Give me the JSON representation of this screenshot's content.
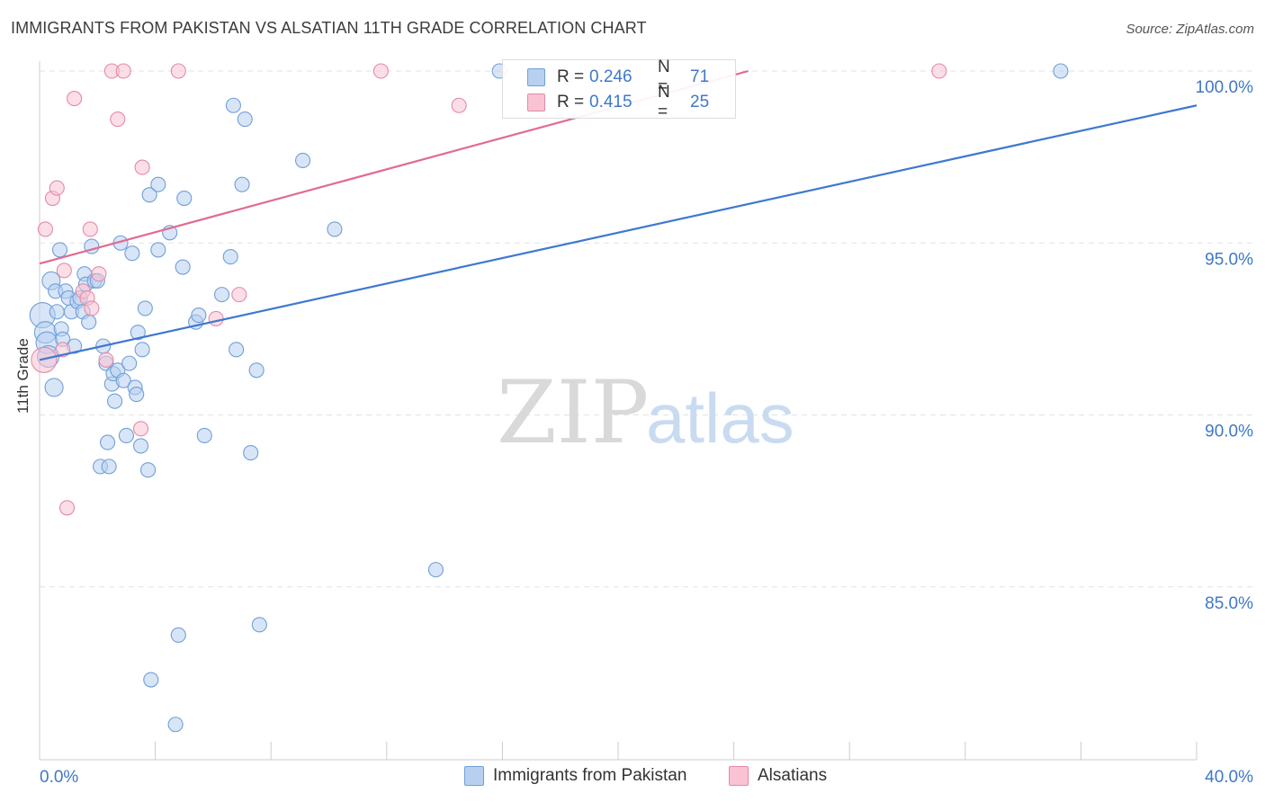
{
  "header": {
    "title": "IMMIGRANTS FROM PAKISTAN VS ALSATIAN 11TH GRADE CORRELATION CHART",
    "source": "Source: ZipAtlas.com"
  },
  "watermark": {
    "zip": "ZIP",
    "atlas": "atlas"
  },
  "legend": {
    "r_label": "R =",
    "n_label": "N =",
    "series": [
      {
        "name": "Immigrants from Pakistan",
        "r": "0.246",
        "n": "71",
        "fill": "#b8d0f0",
        "stroke": "#6f9fd8"
      },
      {
        "name": "Alsatians",
        "r": "0.415",
        "n": "25",
        "fill": "#f9c3d3",
        "stroke": "#e48aa8"
      }
    ]
  },
  "colors": {
    "blue_line": "#3f78d0",
    "pink_line": "#e26a90",
    "axis_text": "#3f78c8",
    "grid": "#e2e2e2"
  },
  "chart_data": {
    "type": "scatter",
    "title": "IMMIGRANTS FROM PAKISTAN VS ALSATIAN 11TH GRADE CORRELATION CHART",
    "xlabel": "",
    "ylabel": "11th Grade",
    "xlim": [
      0,
      40
    ],
    "ylim": [
      80.5,
      100.5
    ],
    "x_tick_labels": [
      "0.0%",
      "40.0%"
    ],
    "y_ticks": [
      85,
      90,
      95,
      100
    ],
    "y_tick_labels": [
      "85.0%",
      "90.0%",
      "95.0%",
      "100.0%"
    ],
    "series": [
      {
        "name": "Immigrants from Pakistan",
        "r": 0.246,
        "n": 71,
        "trend": {
          "x0": 0,
          "y0": 91.6,
          "x1": 40,
          "y1": 99.0
        },
        "points": [
          [
            0.1,
            92.9,
            14
          ],
          [
            0.2,
            92.4,
            12
          ],
          [
            0.25,
            92.1,
            12
          ],
          [
            0.3,
            91.7,
            12
          ],
          [
            0.4,
            93.9,
            10
          ],
          [
            0.5,
            90.8,
            10
          ],
          [
            0.55,
            93.6,
            8
          ],
          [
            0.6,
            93.0,
            8
          ],
          [
            0.7,
            94.8,
            8
          ],
          [
            0.75,
            92.5,
            8
          ],
          [
            0.8,
            92.2,
            8
          ],
          [
            0.9,
            93.6,
            8
          ],
          [
            1.0,
            93.4,
            8
          ],
          [
            1.1,
            93.0,
            8
          ],
          [
            1.2,
            92.0,
            8
          ],
          [
            1.3,
            93.3,
            8
          ],
          [
            1.4,
            93.4,
            8
          ],
          [
            1.5,
            93.0,
            8
          ],
          [
            1.55,
            94.1,
            8
          ],
          [
            1.6,
            93.8,
            8
          ],
          [
            1.7,
            92.7,
            8
          ],
          [
            1.8,
            94.9,
            8
          ],
          [
            1.9,
            93.9,
            8
          ],
          [
            2.0,
            93.9,
            8
          ],
          [
            2.1,
            88.5,
            8
          ],
          [
            2.2,
            92.0,
            8
          ],
          [
            2.3,
            91.5,
            8
          ],
          [
            2.35,
            89.2,
            8
          ],
          [
            2.4,
            88.5,
            8
          ],
          [
            2.5,
            90.9,
            8
          ],
          [
            2.55,
            91.2,
            8
          ],
          [
            2.6,
            90.4,
            8
          ],
          [
            2.7,
            91.3,
            8
          ],
          [
            2.8,
            95.0,
            8
          ],
          [
            2.9,
            91.0,
            8
          ],
          [
            3.0,
            89.4,
            8
          ],
          [
            3.1,
            91.5,
            8
          ],
          [
            3.2,
            94.7,
            8
          ],
          [
            3.3,
            90.8,
            8
          ],
          [
            3.35,
            90.6,
            8
          ],
          [
            3.4,
            92.4,
            8
          ],
          [
            3.5,
            89.1,
            8
          ],
          [
            3.55,
            91.9,
            8
          ],
          [
            3.65,
            93.1,
            8
          ],
          [
            3.75,
            88.4,
            8
          ],
          [
            3.8,
            96.4,
            8
          ],
          [
            3.85,
            82.3,
            8
          ],
          [
            4.1,
            96.7,
            8
          ],
          [
            4.1,
            94.8,
            8
          ],
          [
            4.5,
            95.3,
            8
          ],
          [
            4.7,
            81.0,
            8
          ],
          [
            4.8,
            83.6,
            8
          ],
          [
            4.95,
            94.3,
            8
          ],
          [
            5.0,
            96.3,
            8
          ],
          [
            5.4,
            92.7,
            8
          ],
          [
            5.5,
            92.9,
            8
          ],
          [
            5.7,
            89.4,
            8
          ],
          [
            6.3,
            93.5,
            8
          ],
          [
            6.6,
            94.6,
            8
          ],
          [
            6.7,
            99.0,
            8
          ],
          [
            6.8,
            91.9,
            8
          ],
          [
            7.0,
            96.7,
            8
          ],
          [
            7.1,
            98.6,
            8
          ],
          [
            7.3,
            88.9,
            8
          ],
          [
            7.5,
            91.3,
            8
          ],
          [
            7.6,
            83.9,
            8
          ],
          [
            9.1,
            97.4,
            8
          ],
          [
            10.2,
            95.4,
            8
          ],
          [
            13.7,
            85.5,
            8
          ],
          [
            15.9,
            100.0,
            8
          ],
          [
            35.3,
            100.0,
            8
          ]
        ]
      },
      {
        "name": "Alsatians",
        "r": 0.415,
        "n": 25,
        "trend": {
          "x0": 0,
          "y0": 94.4,
          "x1": 24.5,
          "y1": 100.0
        },
        "points": [
          [
            0.15,
            91.6,
            14
          ],
          [
            0.2,
            95.4,
            8
          ],
          [
            0.45,
            96.3,
            8
          ],
          [
            0.6,
            96.6,
            8
          ],
          [
            0.8,
            91.9,
            8
          ],
          [
            0.85,
            94.2,
            8
          ],
          [
            0.95,
            87.3,
            8
          ],
          [
            1.2,
            99.2,
            8
          ],
          [
            1.5,
            93.6,
            8
          ],
          [
            1.65,
            93.4,
            8
          ],
          [
            1.75,
            95.4,
            8
          ],
          [
            1.8,
            93.1,
            8
          ],
          [
            2.05,
            94.1,
            8
          ],
          [
            2.3,
            91.6,
            8
          ],
          [
            2.5,
            100.0,
            8
          ],
          [
            2.7,
            98.6,
            8
          ],
          [
            2.9,
            100.0,
            8
          ],
          [
            3.5,
            89.6,
            8
          ],
          [
            3.55,
            97.2,
            8
          ],
          [
            4.8,
            100.0,
            8
          ],
          [
            6.1,
            92.8,
            8
          ],
          [
            6.9,
            93.5,
            8
          ],
          [
            11.8,
            100.0,
            8
          ],
          [
            14.5,
            99.0,
            8
          ],
          [
            31.1,
            100.0,
            8
          ]
        ]
      }
    ]
  }
}
